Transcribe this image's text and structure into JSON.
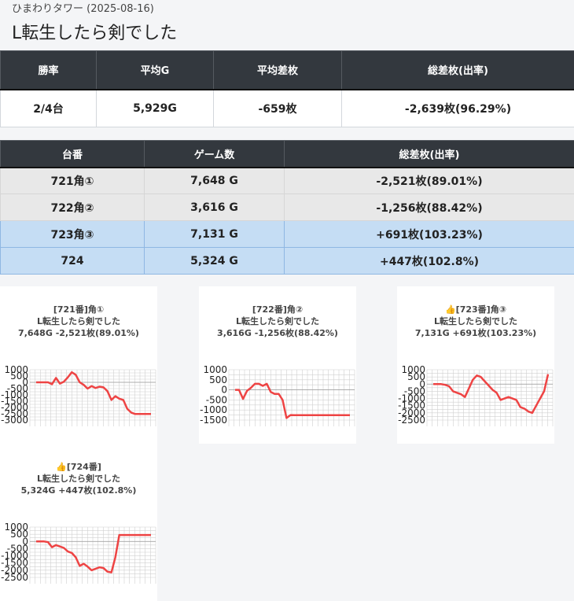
{
  "header": {
    "store": "ひまわりタワー (2025-08-16)",
    "machine": "L転生したら剣でした"
  },
  "summary": {
    "headers": [
      "勝率",
      "平均G",
      "平均差枚",
      "総差枚(出率)"
    ],
    "values": [
      "2/4台",
      "5,929G",
      "-659枚",
      "-2,639枚(96.29%)"
    ]
  },
  "units": {
    "headers": [
      "台番",
      "ゲーム数",
      "総差枚(出率)"
    ],
    "rows": [
      {
        "unit": "721角①",
        "games": "7,648 G",
        "diff": "-2,521枚(89.01%)",
        "status": "neg"
      },
      {
        "unit": "722角②",
        "games": "3,616 G",
        "diff": "-1,256枚(88.42%)",
        "status": "neg"
      },
      {
        "unit": "723角③",
        "games": "7,131 G",
        "diff": "+691枚(103.23%)",
        "status": "pos"
      },
      {
        "unit": "724",
        "games": "5,324 G",
        "diff": "+447枚(102.8%)",
        "status": "pos"
      }
    ]
  },
  "chart_data": [
    {
      "type": "line",
      "title_lines": [
        "[721番]角①",
        "L転生したら剣でした",
        "7,648G -2,521枚(89.01%)"
      ],
      "yticks": [
        1000,
        500,
        0,
        -500,
        -1000,
        -1500,
        -2000,
        -2500,
        -3000
      ],
      "ylim": [
        -3000,
        1000
      ],
      "color": "#ee4444",
      "values": [
        0,
        0,
        0,
        0,
        -150,
        350,
        -100,
        50,
        400,
        800,
        600,
        0,
        -200,
        -500,
        -300,
        -450,
        -350,
        -400,
        -700,
        -1400,
        -1100,
        -1300,
        -1400,
        -2100,
        -2400,
        -2521,
        -2521,
        -2521,
        -2521,
        -2521
      ]
    },
    {
      "type": "line",
      "title_lines": [
        "[722番]角②",
        "L転生したら剣でした",
        "3,616G -1,256枚(88.42%)"
      ],
      "yticks": [
        1000,
        500,
        0,
        -500,
        -1000,
        -1500
      ],
      "ylim": [
        -1500,
        1000
      ],
      "color": "#ee4444",
      "values": [
        0,
        0,
        -450,
        -50,
        100,
        300,
        300,
        200,
        300,
        -100,
        -200,
        -200,
        -500,
        -1400,
        -1250,
        -1256,
        -1256,
        -1256,
        -1256,
        -1256,
        -1256,
        -1256,
        -1256,
        -1256,
        -1256,
        -1256,
        -1256,
        -1256,
        -1256,
        -1256
      ]
    },
    {
      "type": "line",
      "title_lines": [
        "[723番]角③",
        "L転生したら剣でした",
        "7,131G +691枚(103.23%)"
      ],
      "title_icon": "👍",
      "yticks": [
        1000,
        500,
        0,
        -500,
        -1000,
        -1500,
        -2000,
        -2500
      ],
      "ylim": [
        -2500,
        1000
      ],
      "color": "#ee4444",
      "values": [
        0,
        0,
        0,
        -50,
        -150,
        -500,
        -600,
        -700,
        -900,
        -300,
        300,
        600,
        500,
        200,
        -100,
        -400,
        -600,
        -1100,
        -1000,
        -900,
        -1000,
        -1100,
        -1600,
        -1700,
        -1900,
        -2000,
        -1500,
        -1000,
        -500,
        691
      ]
    },
    {
      "type": "line",
      "title_lines": [
        "[724番]",
        "L転生したら剣でした",
        "5,324G +447枚(102.8%)"
      ],
      "title_icon": "👍",
      "yticks": [
        1000,
        500,
        0,
        -500,
        -1000,
        -1500,
        -2000,
        -2500
      ],
      "ylim": [
        -2500,
        1000
      ],
      "color": "#ee4444",
      "values": [
        0,
        0,
        0,
        -50,
        -400,
        -250,
        -350,
        -450,
        -700,
        -800,
        -1100,
        -1700,
        -1550,
        -1750,
        -2000,
        -1900,
        -1800,
        -1850,
        -2100,
        -2150,
        -1100,
        447,
        447,
        447,
        447,
        447,
        447,
        447,
        447,
        447
      ]
    }
  ]
}
